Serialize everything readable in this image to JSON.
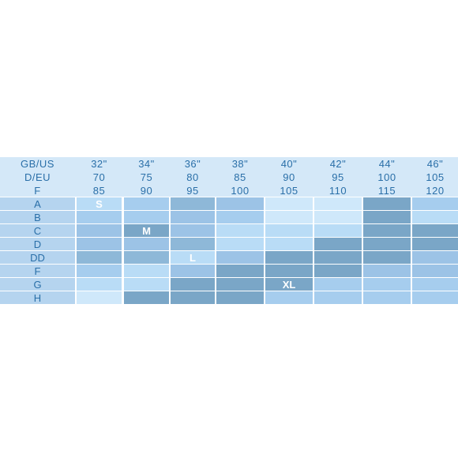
{
  "header_rows": [
    {
      "label": "GB/US",
      "values": [
        "32\"",
        "34\"",
        "36\"",
        "38\"",
        "40\"",
        "42\"",
        "44\"",
        "46\""
      ]
    },
    {
      "label": "D/EU",
      "values": [
        "70",
        "75",
        "80",
        "85",
        "90",
        "95",
        "100",
        "105"
      ]
    },
    {
      "label": "F",
      "values": [
        "85",
        "90",
        "95",
        "100",
        "105",
        "110",
        "115",
        "120"
      ]
    }
  ],
  "cup_rows": [
    {
      "label": "A",
      "shades": [
        1,
        2,
        4,
        3,
        0,
        0,
        5,
        2
      ],
      "size_label": "S",
      "size_col": 0
    },
    {
      "label": "B",
      "shades": [
        2,
        2,
        3,
        2,
        0,
        0,
        5,
        1
      ],
      "size_label": "",
      "size_col": -1
    },
    {
      "label": "C",
      "shades": [
        3,
        5,
        3,
        1,
        1,
        1,
        5,
        5
      ],
      "size_label": "M",
      "size_col": 1
    },
    {
      "label": "D",
      "shades": [
        3,
        3,
        4,
        1,
        1,
        5,
        5,
        5
      ],
      "size_label": "",
      "size_col": -1
    },
    {
      "label": "DD",
      "shades": [
        4,
        4,
        1,
        3,
        5,
        5,
        5,
        3
      ],
      "size_label": "L",
      "size_col": 2
    },
    {
      "label": "F",
      "shades": [
        2,
        1,
        3,
        5,
        5,
        5,
        3,
        3
      ],
      "size_label": "",
      "size_col": -1
    },
    {
      "label": "G",
      "shades": [
        1,
        1,
        5,
        5,
        5,
        2,
        2,
        2
      ],
      "size_label": "XL",
      "size_col": 4
    },
    {
      "label": "H",
      "shades": [
        0,
        5,
        5,
        5,
        2,
        2,
        2,
        2
      ],
      "size_label": "",
      "size_col": -1
    }
  ],
  "colors": {
    "header_bg": "#d4e8f8",
    "label_bg": "#b5d4ef",
    "text": "#2a6fa8",
    "shades": [
      "#cfe8fa",
      "#b9dcf6",
      "#a6cdee",
      "#9cc3e6",
      "#8eb8d8",
      "#7aa6c7"
    ]
  }
}
